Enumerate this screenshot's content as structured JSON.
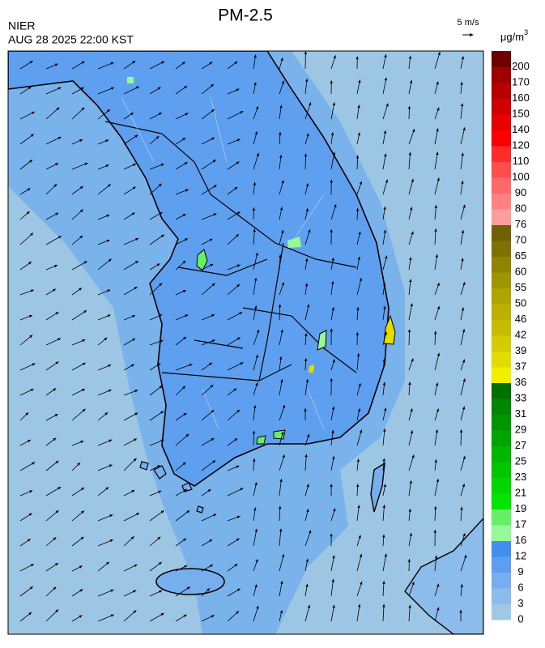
{
  "header": {
    "title": "PM-2.5",
    "source": "NIER",
    "datetime": "AUG 28 2025 22:00 KST",
    "wind_scale": "5 m/s"
  },
  "legend": {
    "unit": "μg/m",
    "unit_exponent": "3",
    "levels": [
      0,
      3,
      6,
      9,
      12,
      16,
      17,
      19,
      21,
      23,
      25,
      27,
      29,
      31,
      33,
      36,
      37,
      39,
      42,
      46,
      50,
      55,
      60,
      65,
      70,
      76,
      80,
      90,
      100,
      110,
      120,
      140,
      150,
      160,
      170,
      200
    ],
    "colors": [
      "#a0c8e6",
      "#8cbcec",
      "#76aef0",
      "#5c9ff0",
      "#3f8ef0",
      "#98f898",
      "#66f066",
      "#00e600",
      "#00d600",
      "#00c600",
      "#00b600",
      "#00a600",
      "#009600",
      "#008600",
      "#007000",
      "#f0f000",
      "#e2dc00",
      "#d4cc00",
      "#c8bc00",
      "#bcb000",
      "#b0a400",
      "#a09400",
      "#908400",
      "#807000",
      "#706000",
      "#ff9c9c",
      "#ff8282",
      "#ff6868",
      "#ff4c4c",
      "#ff2a2a",
      "#ff0000",
      "#e80000",
      "#d00000",
      "#b80000",
      "#a00000",
      "#700000"
    ]
  }
}
